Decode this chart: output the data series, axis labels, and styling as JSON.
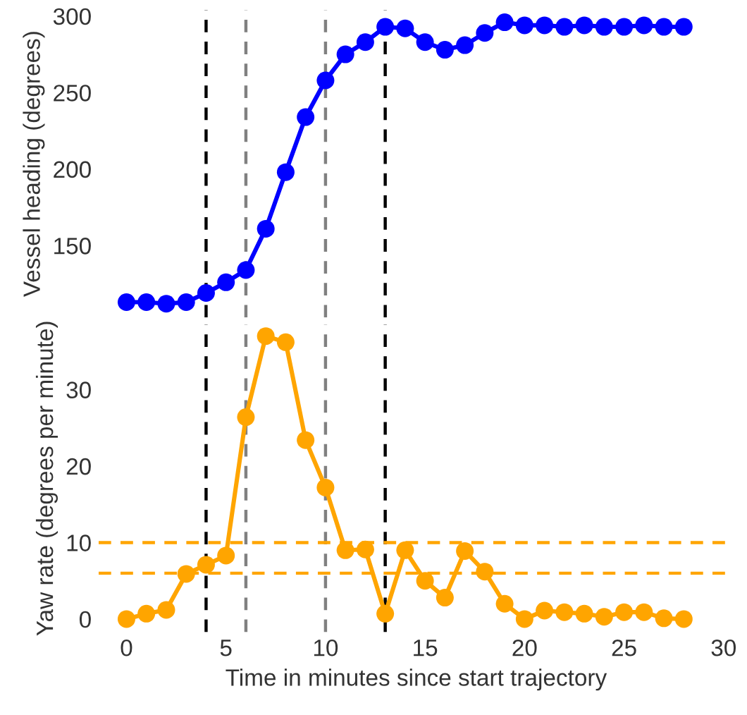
{
  "chart_data": [
    {
      "type": "line",
      "ylabel": "Vessel heading (degrees)",
      "x": [
        0,
        1,
        2,
        3,
        4,
        5,
        6,
        7,
        8,
        9,
        10,
        11,
        12,
        13,
        14,
        15,
        16,
        17,
        18,
        19,
        20,
        21,
        22,
        23,
        24,
        25,
        26,
        27,
        28
      ],
      "series": [
        {
          "color": "#0000ff",
          "values": [
            113,
            113,
            112,
            113,
            119,
            126,
            134,
            161,
            198,
            234,
            258,
            275,
            283,
            293,
            292,
            283,
            278,
            281,
            289,
            296,
            294,
            294,
            293,
            294,
            293,
            293,
            294,
            293,
            293
          ]
        }
      ],
      "xticks": [
        0,
        5,
        10,
        15,
        20,
        25,
        30
      ],
      "ylim": [
        103,
        304
      ],
      "yticks": [
        150,
        200,
        250,
        300
      ],
      "tick_labels": "y",
      "marker": "circle",
      "line_style": "solid",
      "grid": false,
      "ref_lines": [
        {
          "axis": "x",
          "value": 4,
          "color": "#000000",
          "line_style": "dashed"
        },
        {
          "axis": "x",
          "value": 6,
          "color": "#808080",
          "line_style": "dashed"
        },
        {
          "axis": "x",
          "value": 10,
          "color": "#808080",
          "line_style": "dashed"
        },
        {
          "axis": "x",
          "value": 13,
          "color": "#000000",
          "line_style": "dashed"
        }
      ]
    },
    {
      "type": "line",
      "xlabel": "Time in minutes since start trajectory",
      "ylabel": "Yaw rate (degrees per minute)",
      "x": [
        0,
        1,
        2,
        3,
        4,
        5,
        6,
        7,
        8,
        9,
        10,
        11,
        12,
        13,
        14,
        15,
        16,
        17,
        18,
        19,
        20,
        21,
        22,
        23,
        24,
        25,
        26,
        27,
        28
      ],
      "series": [
        {
          "color": "#ffa500",
          "values": [
            0,
            0.7,
            1.2,
            5.9,
            7.1,
            8.3,
            26.4,
            37,
            36.2,
            23.4,
            17.2,
            9,
            9.1,
            0.7,
            9,
            5,
            2.8,
            8.9,
            6.2,
            2,
            0,
            1.1,
            0.9,
            0.7,
            0.3,
            0.9,
            0.9,
            0.1,
            0
          ]
        }
      ],
      "xlim": [
        -1.4,
        30.5
      ],
      "xticks": [
        0,
        5,
        10,
        15,
        20,
        25,
        30
      ],
      "ylim": [
        -1.7,
        38.5
      ],
      "yticks": [
        0,
        10,
        20,
        30
      ],
      "marker": "circle",
      "line_style": "solid",
      "grid": false,
      "ref_lines": [
        {
          "axis": "x",
          "value": 4,
          "color": "#000000",
          "line_style": "dashed"
        },
        {
          "axis": "x",
          "value": 6,
          "color": "#808080",
          "line_style": "dashed"
        },
        {
          "axis": "x",
          "value": 10,
          "color": "#808080",
          "line_style": "dashed"
        },
        {
          "axis": "x",
          "value": 13,
          "color": "#000000",
          "line_style": "dashed"
        },
        {
          "axis": "y",
          "value": 10,
          "color": "#ffa500",
          "line_style": "dashed"
        },
        {
          "axis": "y",
          "value": 6,
          "color": "#ffa500",
          "line_style": "dashed"
        }
      ]
    }
  ]
}
